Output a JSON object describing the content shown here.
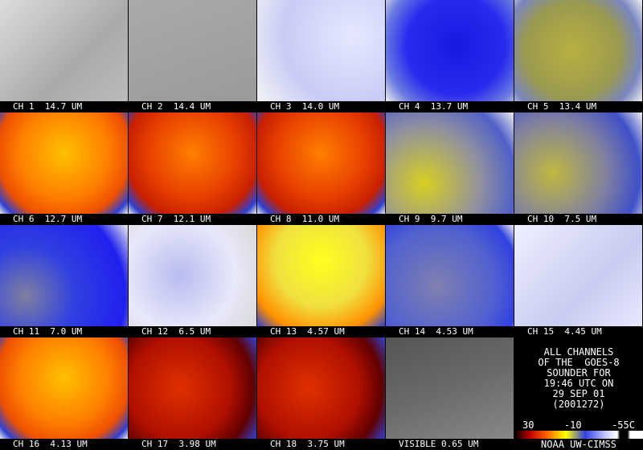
{
  "panels": [
    {
      "label": "CH 1  14.7 UM"
    },
    {
      "label": "CH 2  14.4 UM"
    },
    {
      "label": "CH 3  14.0 UM"
    },
    {
      "label": "CH 4  13.7 UM"
    },
    {
      "label": "CH 5  13.4 UM"
    },
    {
      "label": "CH 6  12.7 UM"
    },
    {
      "label": "CH 7  12.1 UM"
    },
    {
      "label": "CH 8  11.0 UM"
    },
    {
      "label": "CH 9  9.7 UM"
    },
    {
      "label": "CH 10  7.5 UM"
    },
    {
      "label": "CH 11  7.0 UM"
    },
    {
      "label": "CH 12  6.5 UM"
    },
    {
      "label": "CH 13  4.57 UM"
    },
    {
      "label": "CH 14  4.53 UM"
    },
    {
      "label": "CH 15  4.45 UM"
    },
    {
      "label": "CH 16  4.13 UM"
    },
    {
      "label": "CH 17  3.98 UM"
    },
    {
      "label": "CH 18  3.75 UM"
    },
    {
      "label": "VISIBLE 0.65 UM"
    }
  ],
  "caption": {
    "lines": [
      "ALL CHANNELS",
      "OF THE  GOES-8",
      "SOUNDER FOR",
      "19:46 UTC ON",
      "29 SEP 01",
      "(2001272)"
    ],
    "scale_labels": [
      "30",
      "-10",
      "-55C"
    ],
    "credit": "NOAA UW-CIMSS"
  }
}
